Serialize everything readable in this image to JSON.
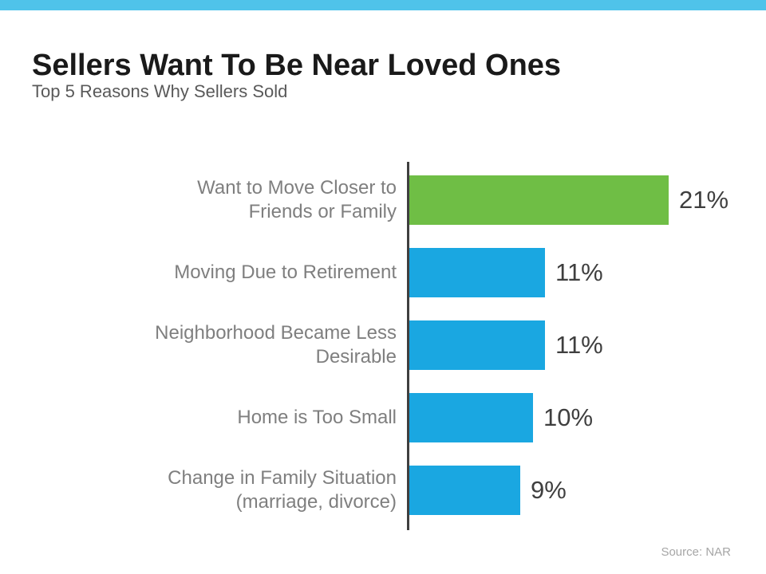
{
  "colors": {
    "top_strip": "#4FC3EA",
    "highlight_green": "#6FBE45",
    "bar_blue": "#1AA7E1",
    "axis": "#3F3F3F"
  },
  "chart_data": {
    "type": "bar",
    "orientation": "horizontal",
    "title": "Sellers Want To Be Near Loved Ones",
    "subtitle": "Top 5 Reasons Why Sellers Sold",
    "source": "Source: NAR",
    "xlabel": "",
    "ylabel": "",
    "xlim": [
      0,
      28
    ],
    "grid": false,
    "legend": "none",
    "categories": [
      "Want to Move Closer to Friends or Family",
      "Moving Due to Retirement",
      "Neighborhood Became Less Desirable",
      "Home is Too Small",
      "Change in Family Situation (marriage, divorce)"
    ],
    "category_lines": [
      [
        "Want to Move Closer to",
        "Friends or Family"
      ],
      [
        "Moving Due to Retirement"
      ],
      [
        "Neighborhood Became Less",
        "Desirable"
      ],
      [
        "Home is Too Small"
      ],
      [
        "Change in Family Situation",
        "(marriage, divorce)"
      ]
    ],
    "values": [
      21,
      11,
      11,
      10,
      9
    ],
    "value_labels": [
      "21%",
      "11%",
      "11%",
      "10%",
      "9%"
    ],
    "bar_colors": [
      "#6FBE45",
      "#1AA7E1",
      "#1AA7E1",
      "#1AA7E1",
      "#1AA7E1"
    ]
  }
}
